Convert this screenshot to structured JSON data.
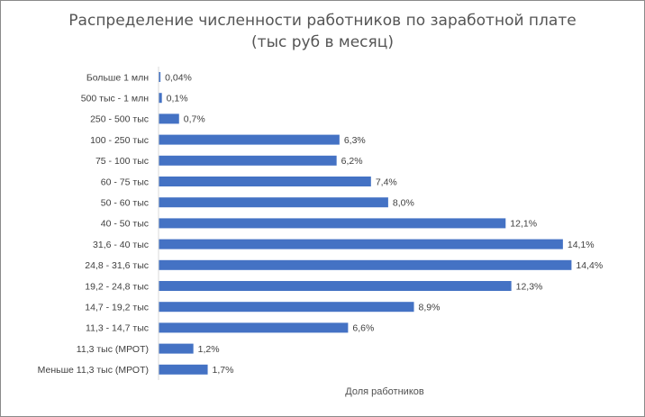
{
  "chart_data": {
    "type": "bar",
    "orientation": "horizontal",
    "title": "Распределение численности работников по заработной плате",
    "subtitle": "(тыс руб в месяц)",
    "xlabel": "Доля работников",
    "ylabel": "",
    "categories": [
      "Больше 1 млн",
      "500 тыс - 1 млн",
      "250 - 500 тыс",
      "100 - 250 тыс",
      "75 - 100 тыс",
      "60 - 75 тыс",
      "50 - 60 тыс",
      "40 - 50 тыс",
      "31,6 - 40 тыс",
      "24,8 - 31,6 тыс",
      "19,2 - 24,8 тыс",
      "14,7 - 19,2 тыс",
      "11,3 - 14,7 тыс",
      "11,3 тыс (МРОТ)",
      "Меньше 11,3 тыс (МРОТ)"
    ],
    "values": [
      0.04,
      0.1,
      0.7,
      6.3,
      6.2,
      7.4,
      8.0,
      12.1,
      14.1,
      14.4,
      12.3,
      8.9,
      6.6,
      1.2,
      1.7
    ],
    "value_labels": [
      "0,04%",
      "0,1%",
      "0,7%",
      "6,3%",
      "6,2%",
      "7,4%",
      "8,0%",
      "12,1%",
      "14,1%",
      "14,4%",
      "12,3%",
      "8,9%",
      "6,6%",
      "1,2%",
      "1,7%"
    ],
    "xlim": [
      0,
      16
    ],
    "unit": "%",
    "grid": false,
    "legend": "none",
    "bar_color": "#4472c4"
  }
}
